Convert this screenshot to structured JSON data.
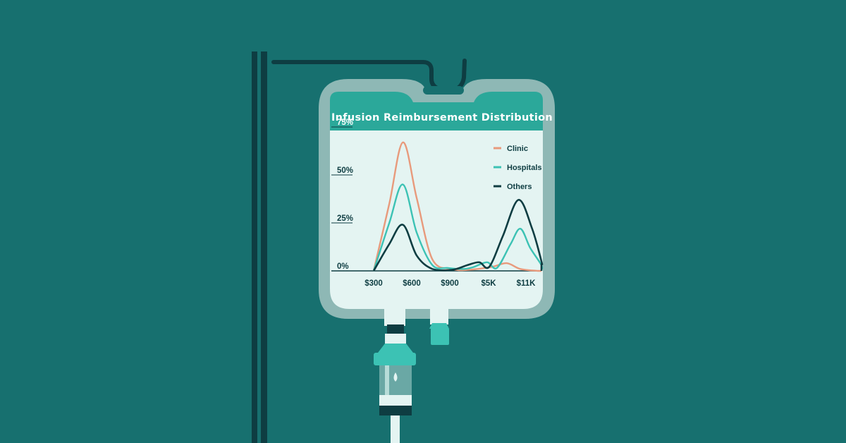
{
  "chart_data": {
    "type": "line",
    "title": "Infusion Reimbursement Distribution",
    "xlabel": "",
    "ylabel": "",
    "x_ticks": [
      "$300",
      "$600",
      "$900",
      "$5K",
      "$11K"
    ],
    "y_ticks": [
      "75%",
      "50%",
      "25%",
      "0%"
    ],
    "ylim": [
      0,
      75
    ],
    "legend_position": "top-right",
    "series": [
      {
        "name": "Clinic",
        "color": "#e89a7c",
        "points": [
          [
            0,
            0
          ],
          [
            0.4,
            35
          ],
          [
            0.75,
            67
          ],
          [
            1.1,
            38
          ],
          [
            1.5,
            6
          ],
          [
            2.0,
            1
          ],
          [
            2.4,
            0.5
          ],
          [
            3.0,
            2
          ],
          [
            3.4,
            4
          ],
          [
            3.75,
            1
          ],
          [
            4.2,
            0
          ],
          [
            5.0,
            0
          ]
        ]
      },
      {
        "name": "Hospitals",
        "color": "#3cc2b4",
        "points": [
          [
            0,
            0
          ],
          [
            0.4,
            25
          ],
          [
            0.75,
            45
          ],
          [
            1.1,
            20
          ],
          [
            1.5,
            3
          ],
          [
            1.9,
            1.5
          ],
          [
            2.3,
            1
          ],
          [
            2.55,
            2
          ],
          [
            2.9,
            4.5
          ],
          [
            3.15,
            1.5
          ],
          [
            3.5,
            14
          ],
          [
            3.75,
            22
          ],
          [
            4.0,
            12
          ],
          [
            4.3,
            3
          ],
          [
            4.6,
            0.5
          ],
          [
            5.0,
            0
          ]
        ]
      },
      {
        "name": "Others",
        "color": "#0e3d42",
        "points": [
          [
            0,
            0
          ],
          [
            0.4,
            14
          ],
          [
            0.75,
            24
          ],
          [
            1.1,
            8
          ],
          [
            1.5,
            1
          ],
          [
            2.0,
            0.5
          ],
          [
            2.4,
            3
          ],
          [
            2.7,
            4.5
          ],
          [
            2.95,
            2
          ],
          [
            3.3,
            18
          ],
          [
            3.7,
            37
          ],
          [
            4.05,
            22
          ],
          [
            4.3,
            5
          ],
          [
            4.6,
            3.5
          ],
          [
            4.9,
            0.5
          ],
          [
            5.2,
            0
          ]
        ]
      }
    ]
  },
  "colors": {
    "background": "#17706f",
    "pole": "#0e3d42",
    "bag_frame": "#8eb8b5",
    "bag_screen": "#e4f4f2",
    "header": "#2ba89a",
    "text_dark": "#0e3d42"
  }
}
